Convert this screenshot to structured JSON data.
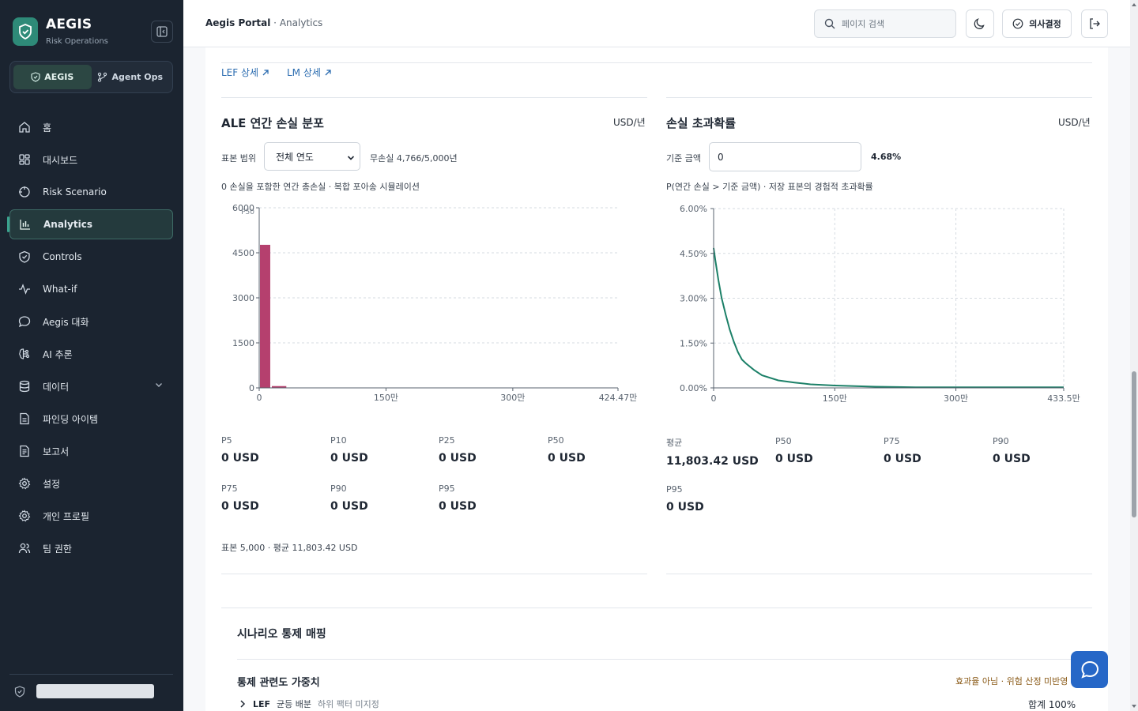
{
  "brand": {
    "title": "AEGIS",
    "subtitle": "Risk Operations"
  },
  "switcher": {
    "items": [
      {
        "label": "AEGIS",
        "icon": "shield-icon",
        "active": true
      },
      {
        "label": "Agent Ops",
        "icon": "branch-icon",
        "active": false
      }
    ]
  },
  "nav": {
    "items": [
      {
        "label": "홈",
        "icon": "home-icon"
      },
      {
        "label": "대시보드",
        "icon": "grid-icon"
      },
      {
        "label": "Risk Scenario",
        "icon": "target-icon"
      },
      {
        "label": "Analytics",
        "icon": "bar-chart-icon",
        "active": true
      },
      {
        "label": "Controls",
        "icon": "shield-icon"
      },
      {
        "label": "What-if",
        "icon": "pulse-icon"
      },
      {
        "label": "Aegis 대화",
        "icon": "chat-icon"
      },
      {
        "label": "AI 추론",
        "icon": "brain-icon"
      },
      {
        "label": "데이터",
        "icon": "database-icon",
        "expandable": true
      },
      {
        "label": "파인딩 아이템",
        "icon": "file-icon"
      },
      {
        "label": "보고서",
        "icon": "report-icon"
      },
      {
        "label": "설정",
        "icon": "gear-icon"
      },
      {
        "label": "개인 프로필",
        "icon": "gear-icon"
      },
      {
        "label": "팀 권한",
        "icon": "users-icon"
      }
    ]
  },
  "topbar": {
    "breadcrumb_root": "Aegis Portal",
    "breadcrumb_sep": " · ",
    "breadcrumb_current": "Analytics",
    "search_placeholder": "페이지 검색",
    "decision_label": "의사결정"
  },
  "links": {
    "lef": "LEF 상세",
    "lm": "LM 상세"
  },
  "ale_panel": {
    "title": "ALE 연간 손실 분포",
    "unit": "USD/년",
    "sample_range_label": "표본 범위",
    "sample_range_value": "전체 연도",
    "no_loss_text": "무손실 4,766/5,000년",
    "subtitle": "0 손실을 포함한 연간 총손실 · 복합 포아송 시뮬레이션",
    "stats": [
      {
        "k": "P5",
        "v": "0 USD"
      },
      {
        "k": "P10",
        "v": "0 USD"
      },
      {
        "k": "P25",
        "v": "0 USD"
      },
      {
        "k": "P50",
        "v": "0 USD"
      },
      {
        "k": "P75",
        "v": "0 USD"
      },
      {
        "k": "P90",
        "v": "0 USD"
      },
      {
        "k": "P95",
        "v": "0 USD"
      }
    ],
    "footnote": "표본 5,000 · 평균 11,803.42 USD"
  },
  "exceed_panel": {
    "title": "손실 초과확률",
    "unit": "USD/년",
    "threshold_label": "기준 금액",
    "threshold_value": "0",
    "threshold_result": "4.68%",
    "subtitle": "P(연간 손실 > 기준 금액) · 저장 표본의 경험적 초과확률",
    "stats": [
      {
        "k": "평균",
        "v": "11,803.42 USD"
      },
      {
        "k": "P50",
        "v": "0 USD"
      },
      {
        "k": "P75",
        "v": "0 USD"
      },
      {
        "k": "P90",
        "v": "0 USD"
      },
      {
        "k": "P95",
        "v": "0 USD"
      }
    ]
  },
  "chart_data": [
    {
      "type": "bar",
      "ylim": [
        0,
        6000
      ],
      "xlim": [
        0,
        4244700
      ],
      "yticks": [
        "0",
        "1500",
        "3000",
        "4500",
        "6000"
      ],
      "xticks": [
        "0",
        "150만",
        "300만",
        "424.47만"
      ],
      "marker_label": "P50",
      "bars": [
        {
          "x0": 0,
          "x1": 140000,
          "value": 4766
        },
        {
          "x0": 140000,
          "x1": 330000,
          "value": 60
        },
        {
          "x0": 330000,
          "x1": 600000,
          "value": 12
        }
      ],
      "bar_color": "#b5406e"
    },
    {
      "type": "line",
      "ylim": [
        0,
        6
      ],
      "xlim": [
        0,
        4335000
      ],
      "yticks": [
        "0.00%",
        "1.50%",
        "3.00%",
        "4.50%",
        "6.00%"
      ],
      "xticks": [
        "0",
        "150만",
        "300만",
        "433.5만"
      ],
      "x": [
        0,
        20000,
        60000,
        100000,
        150000,
        200000,
        250000,
        300000,
        350000,
        400000,
        500000,
        600000,
        800000,
        1000000,
        1200000,
        1500000,
        2000000,
        2500000,
        3000000,
        3500000,
        4335000
      ],
      "y": [
        4.68,
        4.3,
        3.6,
        3.0,
        2.45,
        1.95,
        1.55,
        1.2,
        0.95,
        0.82,
        0.6,
        0.42,
        0.25,
        0.18,
        0.12,
        0.08,
        0.04,
        0.02,
        0.02,
        0.02,
        0.02
      ],
      "line_color": "#1c8068"
    }
  ],
  "mapping": {
    "title": "시나리오 통제 매핑",
    "weights_title": "통제 관련도 가중치",
    "weights_note": "효과율 아님 · 위험 산정 미반영",
    "row_name": "LEF",
    "row_alloc": "균등 배분",
    "row_note": "하위 팩터 미지정",
    "row_total": "합계 100%"
  }
}
